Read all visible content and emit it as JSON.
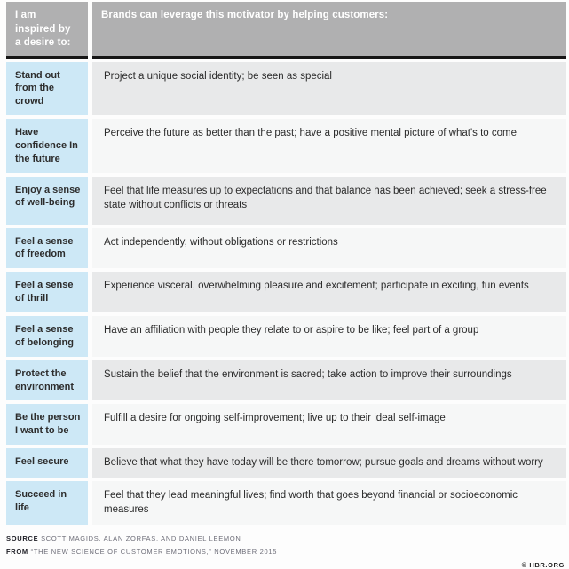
{
  "table": {
    "header": {
      "motivator_col": "I am inspired by a desire to:",
      "brands_col": "Brands can leverage this motivator by helping customers:"
    },
    "rows": [
      {
        "motivator": "Stand out from the crowd",
        "description": "Project a unique social identity; be seen as special"
      },
      {
        "motivator": "Have confidence In the future",
        "description": "Perceive the future as better than the past; have a positive mental picture of what's to come"
      },
      {
        "motivator": "Enjoy a sense of well-being",
        "description": "Feel that life measures up to expectations and that balance has been achieved; seek a stress-free state without conflicts or threats"
      },
      {
        "motivator": "Feel a sense of freedom",
        "description": "Act independently, without obligations or restrictions"
      },
      {
        "motivator": "Feel a sense of thrill",
        "description": "Experience visceral, overwhelming pleasure and excitement; participate in exciting, fun events"
      },
      {
        "motivator": "Feel a sense of belonging",
        "description": "Have an affiliation with people they relate to or aspire to be like; feel part of a group"
      },
      {
        "motivator": "Protect the environment",
        "description": "Sustain the belief that the environment is sacred; take action to improve their surroundings"
      },
      {
        "motivator": "Be the person I want to be",
        "description": "Fulfill a desire for ongoing self-improvement; live up to their ideal self-image"
      },
      {
        "motivator": "Feel secure",
        "description": "Believe that what they have today will be there tomorrow; pursue goals and dreams without worry"
      },
      {
        "motivator": "Succeed in life",
        "description": "Feel that they lead meaningful lives; find worth that goes beyond financial or socioeconomic measures"
      }
    ]
  },
  "footer": {
    "source_label": "SOURCE",
    "source_text": " SCOTT MAGIDS, ALAN ZORFAS, AND DANIEL LEEMON",
    "from_label": "FROM",
    "from_text": " “THE NEW SCIENCE OF CUSTOMER EMOTIONS,” NOVEMBER 2015",
    "copyright": "© HBR.ORG"
  },
  "colors": {
    "header_bg": "#b0b0b1",
    "header_text": "#ffffff",
    "motivator_bg": "#cde8f6",
    "desc_bg_dark": "#e8e9ea",
    "desc_bg_light": "#f6f7f7",
    "divider": "#161616"
  }
}
